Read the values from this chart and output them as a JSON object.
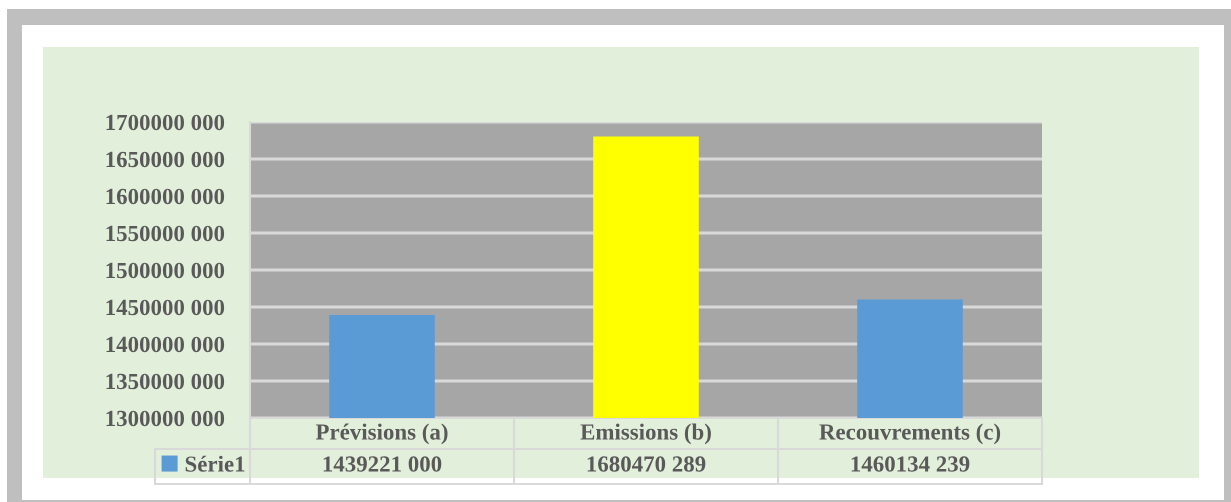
{
  "chart_data": {
    "type": "bar",
    "categories": [
      "Prévisions (a)",
      "Emissions (b)",
      "Recouvrements (c)"
    ],
    "series": [
      {
        "name": "Série1",
        "color": "#5b9bd5",
        "colors": [
          "#5b9bd5",
          "#ffff00",
          "#5b9bd5"
        ],
        "values": [
          1439221000,
          1680470289,
          1460134239
        ],
        "value_labels": [
          "1439221 000",
          "1680470 289",
          "1460134 239"
        ]
      }
    ],
    "ylim": [
      1300000000,
      1700000000
    ],
    "yticks": [
      {
        "value": 1300000000,
        "label": "1300000 000"
      },
      {
        "value": 1350000000,
        "label": "1350000 000"
      },
      {
        "value": 1400000000,
        "label": "1400000 000"
      },
      {
        "value": 1450000000,
        "label": "1450000 000"
      },
      {
        "value": 1500000000,
        "label": "1500000 000"
      },
      {
        "value": 1550000000,
        "label": "1550000 000"
      },
      {
        "value": 1600000000,
        "label": "1600000 000"
      },
      {
        "value": 1650000000,
        "label": "1650000 000"
      },
      {
        "value": 1700000000,
        "label": "1700000 000"
      }
    ],
    "grid": "y",
    "legend": "bottom left"
  }
}
